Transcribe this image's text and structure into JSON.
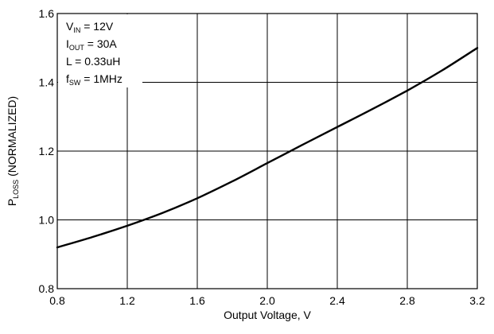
{
  "chart_data": {
    "type": "line",
    "xlabel": "Output Voltage, V",
    "ylabel": {
      "main": "P",
      "sub": "LOSS",
      "rest": " (NORMALIZED)"
    },
    "xlim": [
      0.8,
      3.2
    ],
    "ylim": [
      0.8,
      1.6
    ],
    "xticks": [
      0.8,
      1.2,
      1.6,
      2.0,
      2.4,
      2.8,
      3.2
    ],
    "xtick_labels": [
      "0.8",
      "1.2",
      "1.6",
      "2.0",
      "2.4",
      "2.8",
      "3.2"
    ],
    "yticks": [
      0.8,
      1.0,
      1.2,
      1.4,
      1.6
    ],
    "ytick_labels": [
      "0.8",
      "1.0",
      "1.2",
      "1.4",
      "1.6"
    ],
    "grid": true,
    "series": [
      {
        "color": "#000000",
        "x": [
          0.8,
          1.0,
          1.2,
          1.4,
          1.6,
          1.8,
          2.0,
          2.2,
          2.4,
          2.6,
          2.8,
          3.0,
          3.2
        ],
        "y": [
          0.92,
          0.95,
          0.983,
          1.02,
          1.063,
          1.112,
          1.165,
          1.218,
          1.27,
          1.322,
          1.376,
          1.435,
          1.5
        ]
      }
    ],
    "annotations": [
      {
        "main": "V",
        "sub": "IN",
        "rest": " = 12V"
      },
      {
        "main": "I",
        "sub": "OUT",
        "rest": " = 30A"
      },
      {
        "main": "L = 0.33uH",
        "sub": "",
        "rest": ""
      },
      {
        "main": "f",
        "sub": "SW",
        "rest": " = 1MHz"
      }
    ]
  }
}
